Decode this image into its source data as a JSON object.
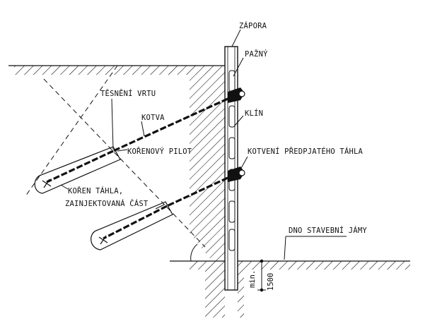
{
  "labels": {
    "zapora": "ZÁPORA",
    "pazny": "PAŽNÝ",
    "tesneni_vrtu": "TĚSNĚNÍ VRTU",
    "kotva": "KOTVA",
    "klin": "KLÍN",
    "korenovy_pilot": "KOŘENOVÝ PILOT",
    "kotveni": "KOTVENÍ PŘEDPJATÉHO TÁHLA",
    "koren_tahla": "KOŘEN TÁHLA,",
    "zainjektovana": "ZAINJEKTOVANÁ ČÁST",
    "dno": "DNO STAVEBNÍ JÁMY",
    "dim_min": "min.",
    "dim_value": "1500"
  },
  "colors": {
    "line": "#111111",
    "background": "#ffffff"
  }
}
